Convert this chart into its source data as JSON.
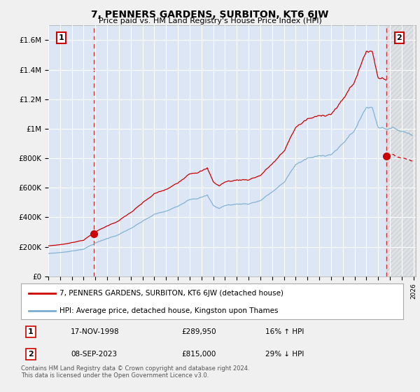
{
  "title": "7, PENNERS GARDENS, SURBITON, KT6 6JW",
  "subtitle": "Price paid vs. HM Land Registry's House Price Index (HPI)",
  "legend_line1": "7, PENNERS GARDENS, SURBITON, KT6 6JW (detached house)",
  "legend_line2": "HPI: Average price, detached house, Kingston upon Thames",
  "transaction1_date": "17-NOV-1998",
  "transaction1_price": "£289,950",
  "transaction1_hpi": "16% ↑ HPI",
  "transaction2_date": "08-SEP-2023",
  "transaction2_price": "£815,000",
  "transaction2_hpi": "29% ↓ HPI",
  "footnote": "Contains HM Land Registry data © Crown copyright and database right 2024.\nThis data is licensed under the Open Government Licence v3.0.",
  "background_color": "#f0f0f0",
  "plot_bg_color": "#dce6f5",
  "red_color": "#cc0000",
  "blue_color": "#7aadcf",
  "ylim": [
    0,
    1700000
  ],
  "yticks": [
    0,
    200000,
    400000,
    600000,
    800000,
    1000000,
    1200000,
    1400000,
    1600000
  ],
  "ytick_labels": [
    "£0",
    "£200K",
    "£400K",
    "£600K",
    "£800K",
    "£1M",
    "£1.2M",
    "£1.4M",
    "£1.6M"
  ],
  "sale1_year": 1998.88,
  "sale1_price": 289950,
  "sale2_year": 2023.69,
  "sale2_price": 815000,
  "xmin": 1995.0,
  "xmax": 2026.2
}
